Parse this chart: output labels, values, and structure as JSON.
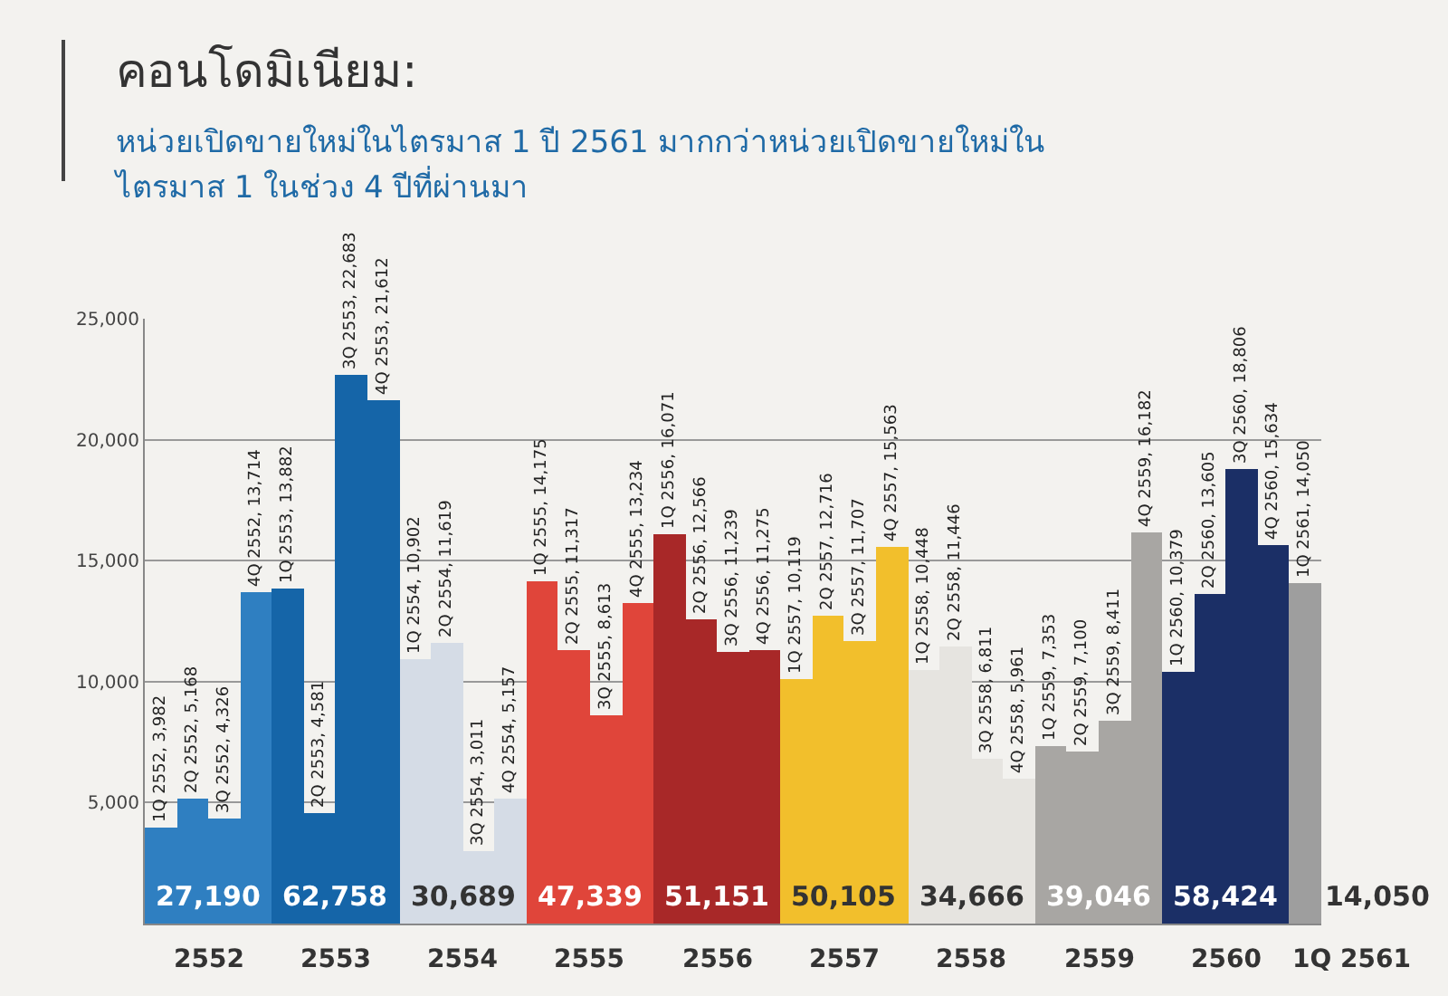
{
  "chart_data": {
    "type": "bar",
    "title": "คอนโดมิเนียม:",
    "subtitle": "หน่วยเปิดขายใหม่ในไตรมาส 1 ปี 2561 มากกว่าหน่วยเปิดขายใหม่ในไตรมาส 1 ในช่วง 4 ปีที่ผ่านมา",
    "categories": [
      null,
      null,
      null,
      null,
      null,
      null,
      null,
      null,
      null,
      null,
      null,
      null,
      null,
      null,
      null,
      null,
      null,
      null,
      null,
      null,
      null,
      null,
      null,
      null,
      null,
      null,
      null,
      null,
      null,
      null,
      null,
      null,
      null,
      null,
      null,
      null,
      null
    ],
    "series": [
      {
        "name": "2552",
        "color": "#2f7fc1",
        "values": [
          3982,
          5168,
          4326,
          13714,
          null,
          null,
          null,
          null,
          null,
          null,
          null,
          null,
          null,
          null,
          null,
          null,
          null,
          null,
          null,
          null,
          null,
          null,
          null,
          null,
          null,
          null,
          null,
          null,
          null,
          null,
          null,
          null,
          null,
          null,
          null,
          null,
          null
        ],
        "value_labels": [
          "1Q 2552, 3,982",
          "2Q 2552, 5,168",
          "3Q 2552, 4,326",
          "4Q 2552, 13,714",
          null,
          null,
          null,
          null,
          null,
          null,
          null,
          null,
          null,
          null,
          null,
          null,
          null,
          null,
          null,
          null,
          null,
          null,
          null,
          null,
          null,
          null,
          null,
          null,
          null,
          null,
          null,
          null,
          null,
          null,
          null,
          null,
          null
        ]
      },
      {
        "name": "2553",
        "color": "#1565a8",
        "values": [
          null,
          null,
          null,
          null,
          13882,
          4581,
          22683,
          21612,
          null,
          null,
          null,
          null,
          null,
          null,
          null,
          null,
          null,
          null,
          null,
          null,
          null,
          null,
          null,
          null,
          null,
          null,
          null,
          null,
          null,
          null,
          null,
          null,
          null,
          null,
          null,
          null,
          null
        ],
        "value_labels": [
          null,
          null,
          null,
          null,
          "1Q 2553, 13,882",
          "2Q 2553, 4,581",
          "3Q 2553, 22,683",
          "4Q 2553, 21,612",
          null,
          null,
          null,
          null,
          null,
          null,
          null,
          null,
          null,
          null,
          null,
          null,
          null,
          null,
          null,
          null,
          null,
          null,
          null,
          null,
          null,
          null,
          null,
          null,
          null,
          null,
          null,
          null,
          null
        ]
      },
      {
        "name": "2554",
        "color": "#d5dce6",
        "values": [
          null,
          null,
          null,
          null,
          null,
          null,
          null,
          null,
          10902,
          11619,
          3011,
          5157,
          null,
          null,
          null,
          null,
          null,
          null,
          null,
          null,
          null,
          null,
          null,
          null,
          null,
          null,
          null,
          null,
          null,
          null,
          null,
          null,
          null,
          null,
          null,
          null,
          null
        ],
        "value_labels": [
          null,
          null,
          null,
          null,
          null,
          null,
          null,
          null,
          "1Q 2554, 10,902",
          "2Q 2554, 11,619",
          "3Q 2554, 3,011",
          "4Q 2554, 5,157",
          null,
          null,
          null,
          null,
          null,
          null,
          null,
          null,
          null,
          null,
          null,
          null,
          null,
          null,
          null,
          null,
          null,
          null,
          null,
          null,
          null,
          null,
          null,
          null,
          null
        ]
      },
      {
        "name": "2555",
        "color": "#e0453a",
        "values": [
          null,
          null,
          null,
          null,
          null,
          null,
          null,
          null,
          null,
          null,
          null,
          null,
          14175,
          11317,
          8613,
          13234,
          null,
          null,
          null,
          null,
          null,
          null,
          null,
          null,
          null,
          null,
          null,
          null,
          null,
          null,
          null,
          null,
          null,
          null,
          null,
          null,
          null
        ],
        "value_labels": [
          null,
          null,
          null,
          null,
          null,
          null,
          null,
          null,
          null,
          null,
          null,
          null,
          "1Q 2555, 14,175",
          "2Q 2555, 11,317",
          "3Q 2555, 8,613",
          "4Q 2555, 13,234",
          null,
          null,
          null,
          null,
          null,
          null,
          null,
          null,
          null,
          null,
          null,
          null,
          null,
          null,
          null,
          null,
          null,
          null,
          null,
          null,
          null
        ]
      },
      {
        "name": "2556",
        "color": "#a82828",
        "values": [
          null,
          null,
          null,
          null,
          null,
          null,
          null,
          null,
          null,
          null,
          null,
          null,
          null,
          null,
          null,
          null,
          16071,
          12566,
          11239,
          11275,
          null,
          null,
          null,
          null,
          null,
          null,
          null,
          null,
          null,
          null,
          null,
          null,
          null,
          null,
          null,
          null,
          null
        ],
        "value_labels": [
          null,
          null,
          null,
          null,
          null,
          null,
          null,
          null,
          null,
          null,
          null,
          null,
          null,
          null,
          null,
          null,
          "1Q 2556, 16,071",
          "2Q 2556, 12,566",
          "3Q 2556, 11,239",
          "4Q 2556, 11,275",
          null,
          null,
          null,
          null,
          null,
          null,
          null,
          null,
          null,
          null,
          null,
          null,
          null,
          null,
          null,
          null,
          null
        ]
      },
      {
        "name": "2557",
        "color": "#f2bf2c",
        "values": [
          null,
          null,
          null,
          null,
          null,
          null,
          null,
          null,
          null,
          null,
          null,
          null,
          null,
          null,
          null,
          null,
          null,
          null,
          null,
          null,
          10119,
          12716,
          11707,
          15563,
          null,
          null,
          null,
          null,
          null,
          null,
          null,
          null,
          null,
          null,
          null,
          null,
          null
        ],
        "value_labels": [
          null,
          null,
          null,
          null,
          null,
          null,
          null,
          null,
          null,
          null,
          null,
          null,
          null,
          null,
          null,
          null,
          null,
          null,
          null,
          null,
          "1Q 2557, 10,119",
          "2Q 2557, 12,716",
          "3Q 2557, 11,707",
          "4Q 2557, 15,563",
          null,
          null,
          null,
          null,
          null,
          null,
          null,
          null,
          null,
          null,
          null,
          null,
          null
        ]
      },
      {
        "name": "2558",
        "color": "#e6e4e0",
        "values": [
          null,
          null,
          null,
          null,
          null,
          null,
          null,
          null,
          null,
          null,
          null,
          null,
          null,
          null,
          null,
          null,
          null,
          null,
          null,
          null,
          null,
          null,
          null,
          null,
          10448,
          11446,
          6811,
          5961,
          null,
          null,
          null,
          null,
          null,
          null,
          null,
          null,
          null
        ],
        "value_labels": [
          null,
          null,
          null,
          null,
          null,
          null,
          null,
          null,
          null,
          null,
          null,
          null,
          null,
          null,
          null,
          null,
          null,
          null,
          null,
          null,
          null,
          null,
          null,
          null,
          "1Q 2558, 10,448",
          "2Q 2558, 11,446",
          "3Q 2558, 6,811",
          "4Q 2558, 5,961",
          null,
          null,
          null,
          null,
          null,
          null,
          null,
          null,
          null
        ]
      },
      {
        "name": "2559",
        "color": "#a8a6a3",
        "values": [
          null,
          null,
          null,
          null,
          null,
          null,
          null,
          null,
          null,
          null,
          null,
          null,
          null,
          null,
          null,
          null,
          null,
          null,
          null,
          null,
          null,
          null,
          null,
          null,
          null,
          null,
          null,
          null,
          7353,
          7100,
          8411,
          16182,
          null,
          null,
          null,
          null,
          null
        ],
        "value_labels": [
          null,
          null,
          null,
          null,
          null,
          null,
          null,
          null,
          null,
          null,
          null,
          null,
          null,
          null,
          null,
          null,
          null,
          null,
          null,
          null,
          null,
          null,
          null,
          null,
          null,
          null,
          null,
          null,
          "1Q 2559, 7,353",
          "2Q 2559, 7,100",
          "3Q 2559, 8,411",
          "4Q 2559, 16,182",
          null,
          null,
          null,
          null,
          null
        ]
      },
      {
        "name": "2560",
        "color": "#1b2f66",
        "values": [
          null,
          null,
          null,
          null,
          null,
          null,
          null,
          null,
          null,
          null,
          null,
          null,
          null,
          null,
          null,
          null,
          null,
          null,
          null,
          null,
          null,
          null,
          null,
          null,
          null,
          null,
          null,
          null,
          null,
          null,
          null,
          null,
          10379,
          13605,
          18806,
          15634,
          null
        ],
        "value_labels": [
          null,
          null,
          null,
          null,
          null,
          null,
          null,
          null,
          null,
          null,
          null,
          null,
          null,
          null,
          null,
          null,
          null,
          null,
          null,
          null,
          null,
          null,
          null,
          null,
          null,
          null,
          null,
          null,
          null,
          null,
          null,
          null,
          "1Q 2560, 10,379",
          "2Q 2560, 13,605",
          "3Q 2560, 18,806",
          "4Q 2560, 15,634",
          null
        ]
      },
      {
        "name": "1Q 2561",
        "color": "#9e9e9e",
        "values": [
          null,
          null,
          null,
          null,
          null,
          null,
          null,
          null,
          null,
          null,
          null,
          null,
          null,
          null,
          null,
          null,
          null,
          null,
          null,
          null,
          null,
          null,
          null,
          null,
          null,
          null,
          null,
          null,
          null,
          null,
          null,
          null,
          null,
          null,
          null,
          null,
          14050
        ],
        "value_labels": [
          null,
          null,
          null,
          null,
          null,
          null,
          null,
          null,
          null,
          null,
          null,
          null,
          null,
          null,
          null,
          null,
          null,
          null,
          null,
          null,
          null,
          null,
          null,
          null,
          null,
          null,
          null,
          null,
          null,
          null,
          null,
          null,
          null,
          null,
          null,
          null,
          "1Q 2561, 14,050"
        ]
      }
    ],
    "annotations": [
      "27,190",
      "62,758",
      "30,689",
      "47,339",
      "51,151",
      "50,105",
      "34,666",
      "39,046",
      "58,424",
      "14,050"
    ],
    "ylim": [
      0,
      25000
    ],
    "yticks": [
      {
        "value": 5000,
        "label": "5,000"
      },
      {
        "value": 10000,
        "label": "10,000"
      },
      {
        "value": 15000,
        "label": "15,000"
      },
      {
        "value": 20000,
        "label": "20,000"
      },
      {
        "value": 25000,
        "label": "25,000"
      }
    ],
    "grid": "y",
    "legend": false
  }
}
